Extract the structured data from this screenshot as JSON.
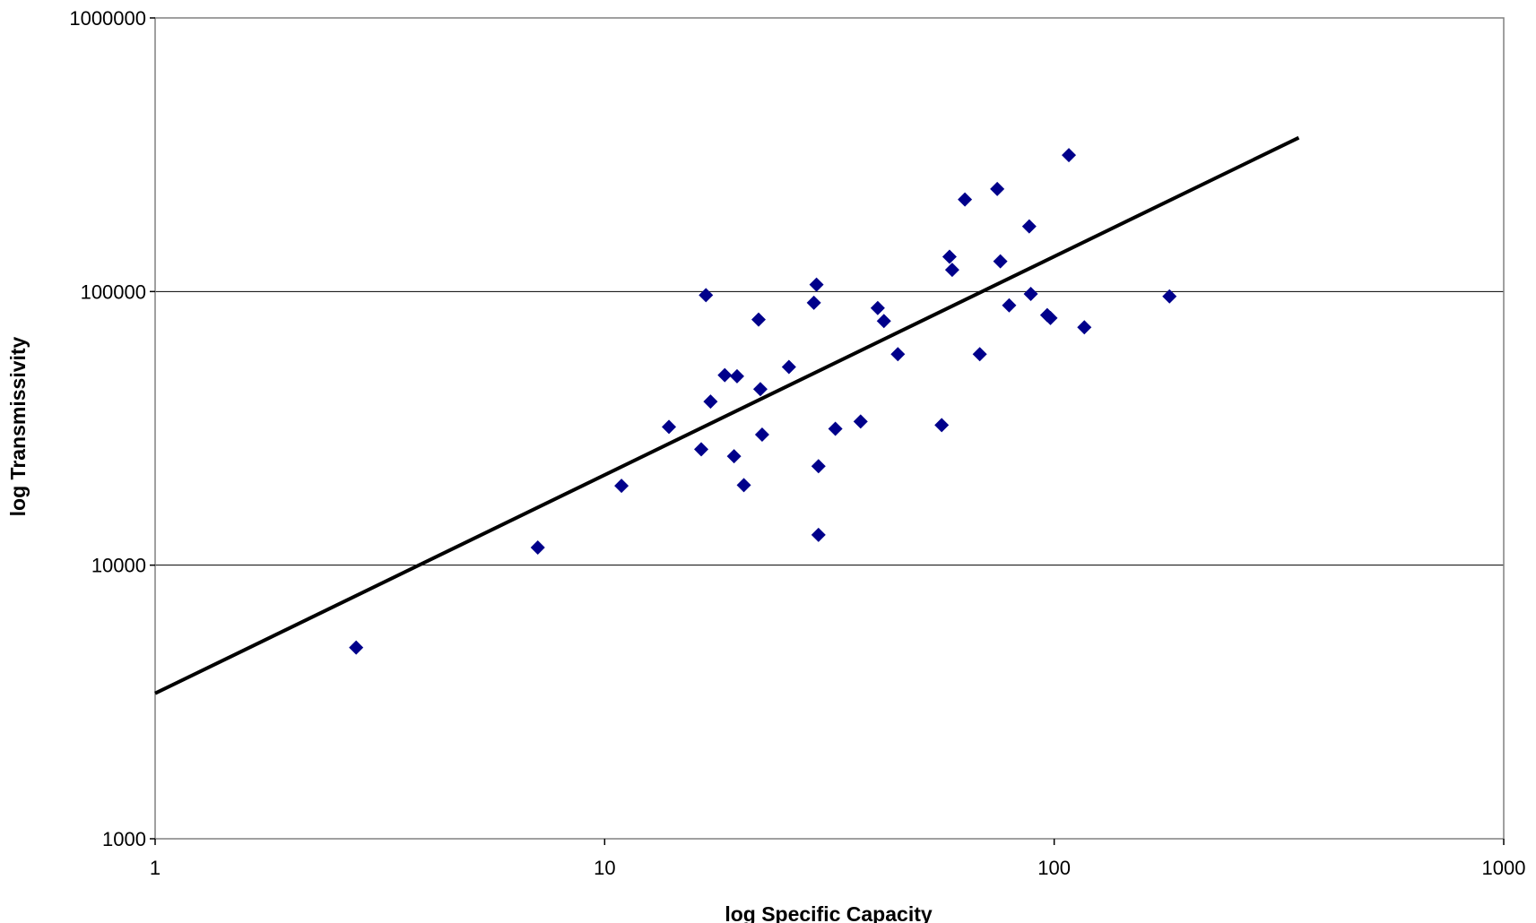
{
  "chart_data": {
    "type": "scatter",
    "title": "",
    "xlabel": "log Specific Capacity",
    "ylabel": "log Transmissivity",
    "x_scale": "log",
    "y_scale": "log",
    "xlim": [
      1,
      1000
    ],
    "ylim": [
      1000,
      1000000
    ],
    "x_ticks": [
      1,
      10,
      100,
      1000
    ],
    "x_tick_labels": [
      "1",
      "10",
      "100",
      "1000"
    ],
    "y_ticks": [
      1000,
      10000,
      100000,
      1000000
    ],
    "y_tick_labels": [
      "1000",
      "10000",
      "100000",
      "1000000"
    ],
    "grid": "horizontal major gridlines",
    "legend": "none",
    "marker_color": "#00008B",
    "trendline_color": "#000000",
    "series": [
      {
        "points": [
          {
            "x": 2.8,
            "y": 5000
          },
          {
            "x": 7.1,
            "y": 11600
          },
          {
            "x": 10.9,
            "y": 19500
          },
          {
            "x": 13.9,
            "y": 32000
          },
          {
            "x": 16.4,
            "y": 26500
          },
          {
            "x": 16.8,
            "y": 97000
          },
          {
            "x": 17.2,
            "y": 39600
          },
          {
            "x": 18.5,
            "y": 49500
          },
          {
            "x": 19.4,
            "y": 25000
          },
          {
            "x": 19.7,
            "y": 49000
          },
          {
            "x": 20.4,
            "y": 19600
          },
          {
            "x": 22.0,
            "y": 79000
          },
          {
            "x": 22.2,
            "y": 44000
          },
          {
            "x": 22.4,
            "y": 30000
          },
          {
            "x": 25.7,
            "y": 53000
          },
          {
            "x": 29.2,
            "y": 91000
          },
          {
            "x": 29.6,
            "y": 106000
          },
          {
            "x": 29.9,
            "y": 23000
          },
          {
            "x": 29.9,
            "y": 12900
          },
          {
            "x": 32.6,
            "y": 31500
          },
          {
            "x": 37.1,
            "y": 33500
          },
          {
            "x": 40.5,
            "y": 87000
          },
          {
            "x": 41.8,
            "y": 78000
          },
          {
            "x": 44.9,
            "y": 59000
          },
          {
            "x": 56.2,
            "y": 32500
          },
          {
            "x": 58.5,
            "y": 134000
          },
          {
            "x": 59.3,
            "y": 120000
          },
          {
            "x": 63.3,
            "y": 217000
          },
          {
            "x": 68.3,
            "y": 59000
          },
          {
            "x": 74.7,
            "y": 237000
          },
          {
            "x": 75.9,
            "y": 129000
          },
          {
            "x": 79.4,
            "y": 89000
          },
          {
            "x": 88.0,
            "y": 173000
          },
          {
            "x": 88.7,
            "y": 98000
          },
          {
            "x": 96.5,
            "y": 82000
          },
          {
            "x": 98.1,
            "y": 80000
          },
          {
            "x": 107.8,
            "y": 315000
          },
          {
            "x": 116.7,
            "y": 74000
          },
          {
            "x": 180.5,
            "y": 96000
          }
        ]
      }
    ],
    "trendline": {
      "type": "power",
      "x_start": 1,
      "y_start": 3400,
      "x_end": 350,
      "y_end": 365000
    }
  }
}
